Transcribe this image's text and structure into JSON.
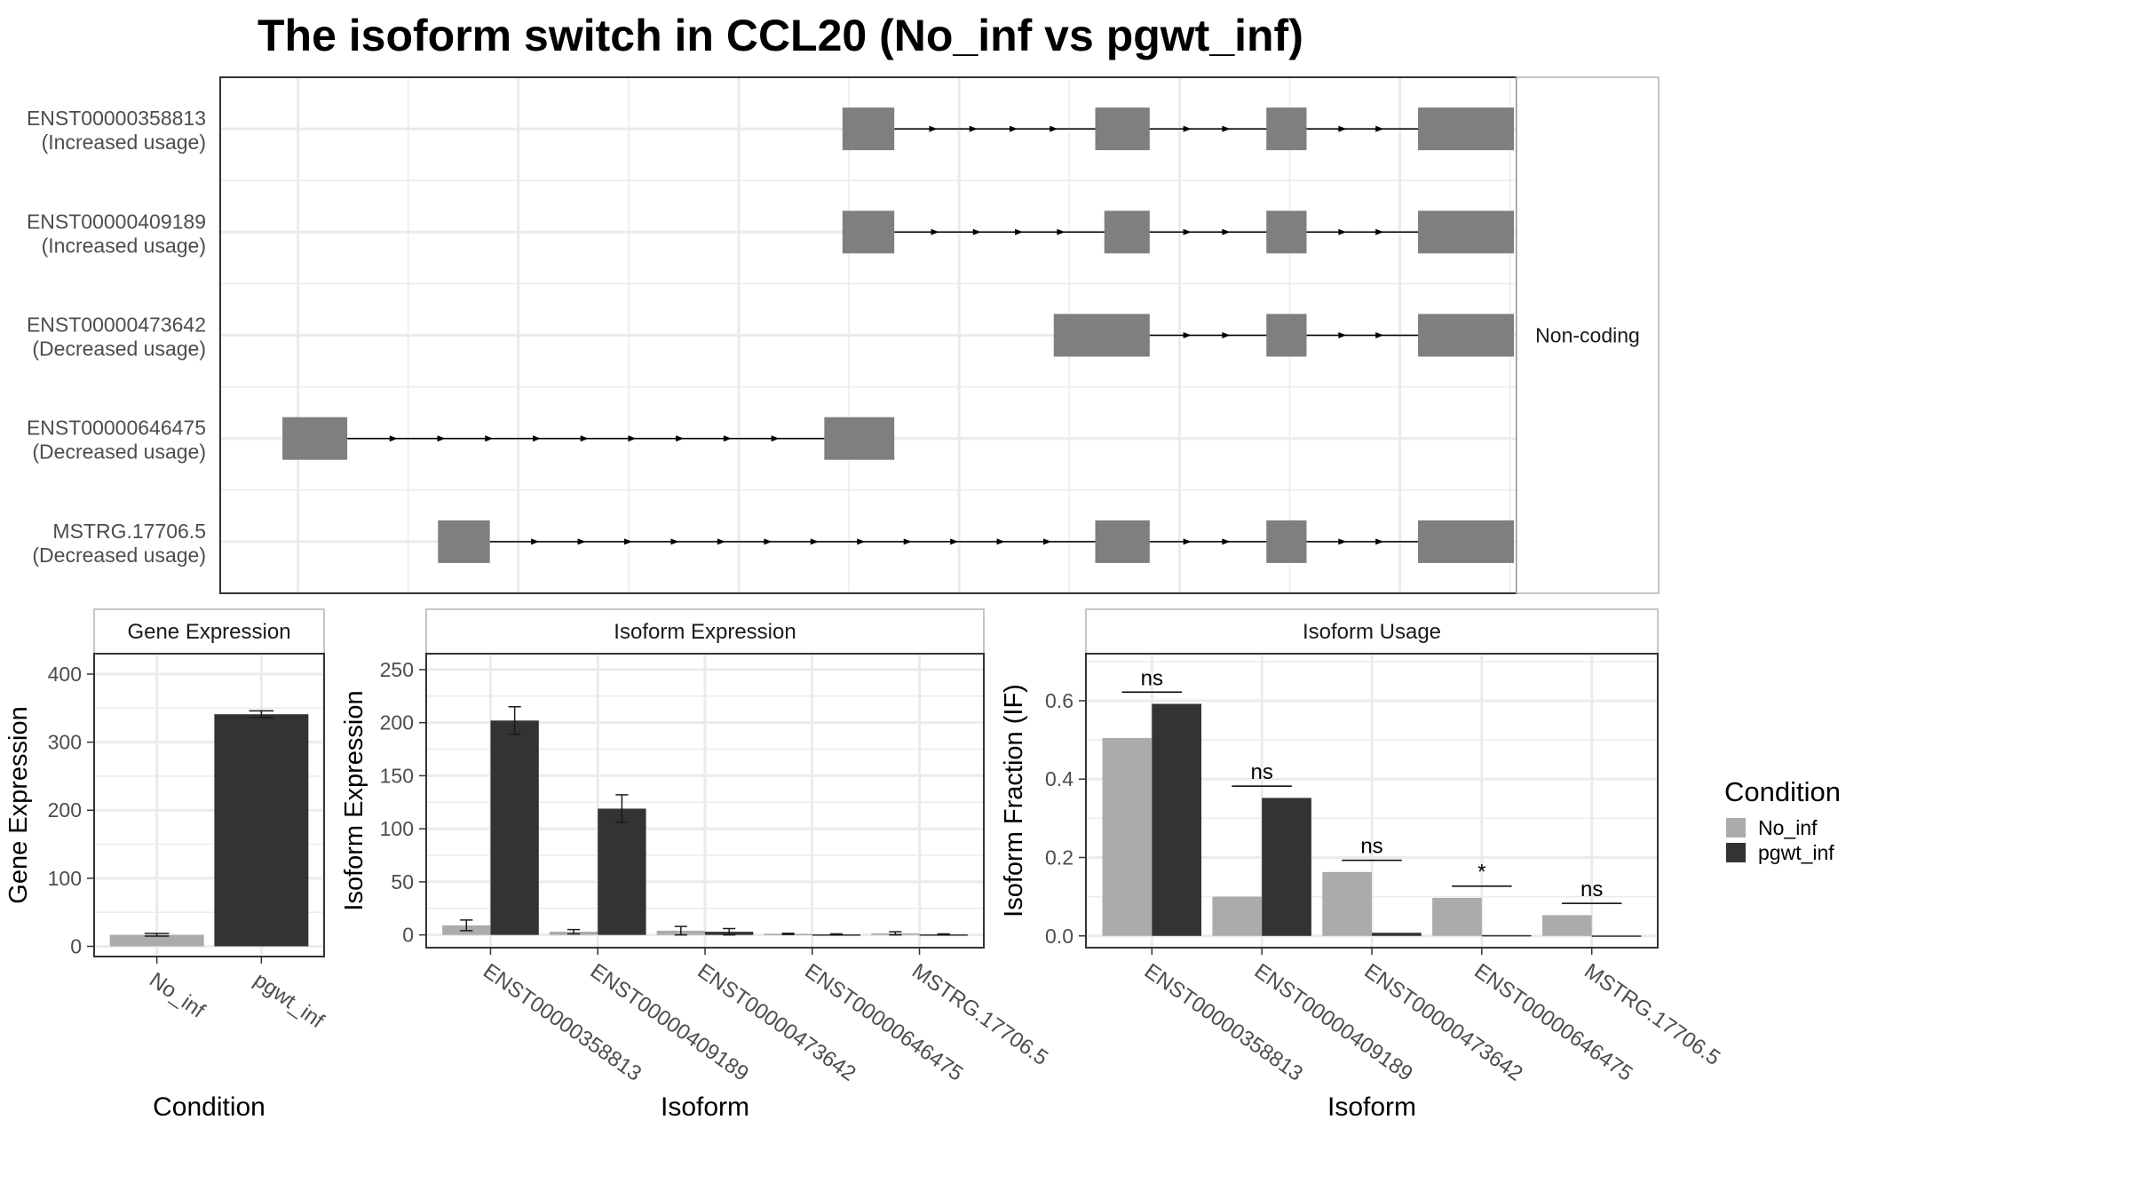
{
  "title": "The isoform switch in CCL20 (No_inf vs pgwt_inf)",
  "colors": {
    "no_inf": "#ABABAB",
    "pgwt_inf": "#333333",
    "exon": "#7F7F7F",
    "grid": "#EBEBEB",
    "strip_border": "#B3B3B3"
  },
  "conditions": [
    "No_inf",
    "pgwt_inf"
  ],
  "legend": {
    "title": "Condition",
    "placement": "right"
  },
  "chart_data": [
    {
      "id": "structure",
      "type": "diagram",
      "strip_label": "Non-coding",
      "x_range": [
        0,
        1000
      ],
      "isoforms": [
        {
          "name": "ENST00000358813",
          "note": "(Increased usage)",
          "exons": [
            [
              480,
              520
            ],
            [
              675,
              717
            ],
            [
              807,
              838
            ],
            [
              924,
              998
            ]
          ]
        },
        {
          "name": "ENST00000409189",
          "note": "(Increased usage)",
          "exons": [
            [
              480,
              520
            ],
            [
              682,
              717
            ],
            [
              807,
              838
            ],
            [
              924,
              998
            ]
          ]
        },
        {
          "name": "ENST00000473642",
          "note": "(Decreased usage)",
          "exons": [
            [
              643,
              717
            ],
            [
              807,
              838
            ],
            [
              924,
              998
            ]
          ]
        },
        {
          "name": "ENST00000646475",
          "note": "(Decreased usage)",
          "exons": [
            [
              48,
              98
            ],
            [
              466,
              520
            ]
          ]
        },
        {
          "name": "MSTRG.17706.5",
          "note": "(Decreased usage)",
          "exons": [
            [
              168,
              208
            ],
            [
              675,
              717
            ],
            [
              807,
              838
            ],
            [
              924,
              998
            ]
          ]
        }
      ]
    },
    {
      "id": "gene",
      "type": "bar",
      "strip_label": "Gene Expression",
      "xlabel": "Condition",
      "ylabel": "Gene Expression",
      "categories": [
        "No_inf",
        "pgwt_inf"
      ],
      "values": [
        17,
        341
      ],
      "errors": [
        2,
        5
      ],
      "ylim": [
        -15,
        430
      ],
      "yticks": [
        0,
        100,
        200,
        300,
        400
      ]
    },
    {
      "id": "isoexp",
      "type": "bar",
      "strip_label": "Isoform Expression",
      "xlabel": "Isoform",
      "ylabel": "Isoform Expression",
      "categories": [
        "ENST00000358813",
        "ENST00000409189",
        "ENST00000473642",
        "ENST00000646475",
        "MSTRG.17706.5"
      ],
      "series": [
        {
          "name": "No_inf",
          "values": [
            9,
            3,
            4,
            1,
            1.5
          ],
          "errors": [
            5,
            2,
            4,
            0.5,
            1.5
          ]
        },
        {
          "name": "pgwt_inf",
          "values": [
            202,
            119,
            3,
            0.5,
            0.5
          ],
          "errors": [
            13,
            13,
            3,
            0.5,
            0.5
          ]
        }
      ],
      "ylim": [
        -12,
        265
      ],
      "yticks": [
        0,
        50,
        100,
        150,
        200,
        250
      ]
    },
    {
      "id": "usage",
      "type": "bar",
      "strip_label": "Isoform Usage",
      "xlabel": "Isoform",
      "ylabel": "Isoform Fraction (IF)",
      "categories": [
        "ENST00000358813",
        "ENST00000409189",
        "ENST00000473642",
        "ENST00000646475",
        "MSTRG.17706.5"
      ],
      "series": [
        {
          "name": "No_inf",
          "values": [
            0.505,
            0.1,
            0.163,
            0.097,
            0.053
          ]
        },
        {
          "name": "pgwt_inf",
          "values": [
            0.592,
            0.352,
            0.008,
            0.002,
            0.001
          ]
        }
      ],
      "significance": [
        "ns",
        "ns",
        "ns",
        "*",
        "ns"
      ],
      "ylim": [
        -0.03,
        0.72
      ],
      "yticks": [
        0.0,
        0.2,
        0.4,
        0.6
      ]
    }
  ]
}
